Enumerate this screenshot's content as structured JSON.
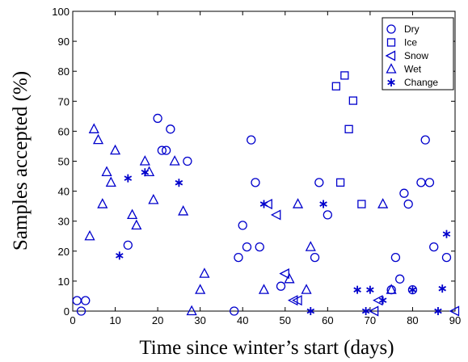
{
  "chart_data": {
    "type": "scatter",
    "title": "",
    "xlabel": "Time since winter’s start (days)",
    "ylabel": "Samples accepted (%)",
    "xlim": [
      0,
      90
    ],
    "ylim": [
      0,
      100
    ],
    "xticks": [
      "0",
      "10",
      "20",
      "30",
      "40",
      "50",
      "60",
      "70",
      "80",
      "90"
    ],
    "yticks": [
      "0",
      "10",
      "20",
      "30",
      "40",
      "50",
      "60",
      "70",
      "80",
      "90",
      "100"
    ],
    "grid": false,
    "legend_position": "top-right",
    "marker_color": "#0000cc",
    "series": [
      {
        "name": "Dry",
        "marker": "circle",
        "points": [
          [
            1,
            3.5
          ],
          [
            2,
            0
          ],
          [
            3,
            3.5
          ],
          [
            13,
            22
          ],
          [
            20,
            64.3
          ],
          [
            21,
            53.6
          ],
          [
            22,
            53.6
          ],
          [
            23,
            60.7
          ],
          [
            27,
            50
          ],
          [
            38,
            0
          ],
          [
            39,
            17.9
          ],
          [
            40,
            28.6
          ],
          [
            41,
            21.4
          ],
          [
            42,
            57.1
          ],
          [
            43,
            42.9
          ],
          [
            44,
            21.4
          ],
          [
            49,
            8.3
          ],
          [
            57,
            17.9
          ],
          [
            58,
            42.9
          ],
          [
            60,
            32.1
          ],
          [
            75,
            7.1
          ],
          [
            76,
            17.9
          ],
          [
            77,
            10.7
          ],
          [
            78,
            39.3
          ],
          [
            79,
            35.7
          ],
          [
            80,
            7.1
          ],
          [
            82,
            42.9
          ],
          [
            83,
            57.1
          ],
          [
            84,
            42.9
          ],
          [
            85,
            21.4
          ],
          [
            88,
            17.9
          ]
        ]
      },
      {
        "name": "Ice",
        "marker": "square",
        "points": [
          [
            62,
            75
          ],
          [
            63,
            42.9
          ],
          [
            64,
            78.6
          ],
          [
            65,
            60.7
          ],
          [
            66,
            70.2
          ],
          [
            68,
            35.7
          ]
        ]
      },
      {
        "name": "Snow",
        "marker": "triangle-left",
        "points": [
          [
            46,
            35.7
          ],
          [
            48,
            32.1
          ],
          [
            50,
            12.5
          ],
          [
            52,
            3.6
          ],
          [
            53,
            3.6
          ],
          [
            71,
            0
          ],
          [
            72,
            3.6
          ],
          [
            90,
            0
          ]
        ]
      },
      {
        "name": "Wet",
        "marker": "triangle-up",
        "points": [
          [
            4,
            25
          ],
          [
            5,
            60.7
          ],
          [
            6,
            57.1
          ],
          [
            7,
            35.7
          ],
          [
            8,
            46.4
          ],
          [
            9,
            42.9
          ],
          [
            10,
            53.6
          ],
          [
            14,
            32.1
          ],
          [
            15,
            28.6
          ],
          [
            17,
            50
          ],
          [
            18,
            46.4
          ],
          [
            19,
            37.1
          ],
          [
            24,
            50
          ],
          [
            26,
            33.3
          ],
          [
            28,
            0
          ],
          [
            30,
            7.1
          ],
          [
            31,
            12.5
          ],
          [
            45,
            7.1
          ],
          [
            51,
            10.7
          ],
          [
            53,
            35.7
          ],
          [
            55,
            7.1
          ],
          [
            56,
            21.4
          ],
          [
            73,
            35.7
          ],
          [
            75,
            7.1
          ]
        ]
      },
      {
        "name": "Change",
        "marker": "asterisk",
        "points": [
          [
            11,
            18.5
          ],
          [
            13,
            44.3
          ],
          [
            17,
            46.3
          ],
          [
            25,
            42.8
          ],
          [
            45,
            35.7
          ],
          [
            56,
            0
          ],
          [
            59,
            35.7
          ],
          [
            67,
            7.1
          ],
          [
            69,
            0
          ],
          [
            70,
            7.1
          ],
          [
            73,
            3.6
          ],
          [
            80,
            7.1
          ],
          [
            86,
            0
          ],
          [
            87,
            7.5
          ],
          [
            88,
            25.7
          ]
        ]
      }
    ]
  }
}
